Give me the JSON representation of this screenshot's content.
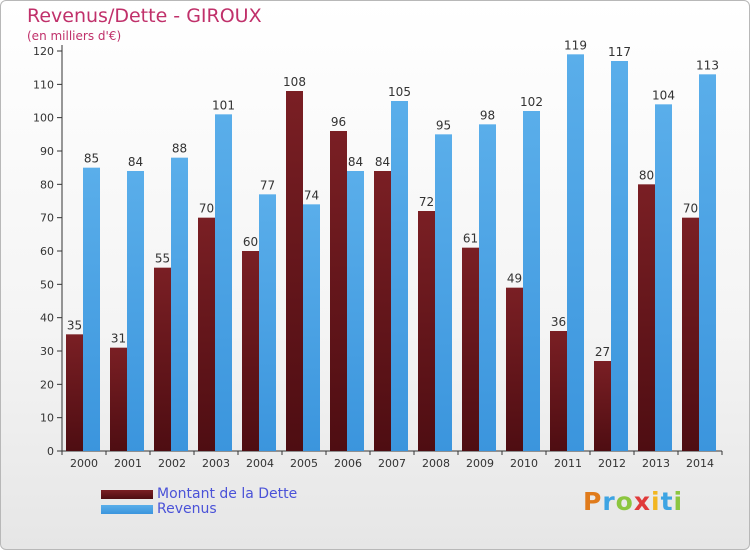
{
  "title": "Revenus/Dette - GIROUX",
  "subtitle": "(en milliers d'€)",
  "colors": {
    "dette": "#7a1f24",
    "dette_dark": "#4e0d12",
    "revenus": "#3b95dd",
    "revenus_light": "#5aaeea",
    "axis": "#333333",
    "grid": "#e0e0e0"
  },
  "legend": {
    "dette_label": "Montant de la Dette",
    "revenus_label": "Revenus"
  },
  "logo": {
    "letters": [
      "P",
      "r",
      "o",
      "x",
      "i",
      "t",
      "i"
    ],
    "colors": [
      "#e07b1b",
      "#3da4e3",
      "#8cc63f",
      "#e03a3a",
      "#f2b620",
      "#3da4e3",
      "#8cc63f"
    ]
  },
  "chart_data": {
    "type": "bar",
    "categories": [
      "2000",
      "2001",
      "2002",
      "2003",
      "2004",
      "2005",
      "2006",
      "2007",
      "2008",
      "2009",
      "2010",
      "2011",
      "2012",
      "2013",
      "2014"
    ],
    "series": [
      {
        "name": "Montant de la Dette",
        "values": [
          35,
          31,
          55,
          70,
          60,
          108,
          96,
          84,
          72,
          61,
          49,
          36,
          27,
          80,
          70
        ]
      },
      {
        "name": "Revenus",
        "values": [
          85,
          84,
          88,
          101,
          77,
          74,
          84,
          105,
          95,
          98,
          102,
          119,
          117,
          104,
          113
        ]
      }
    ],
    "ylim": [
      0,
      120
    ],
    "yticks": [
      0,
      10,
      20,
      30,
      40,
      50,
      60,
      70,
      80,
      90,
      100,
      110,
      120
    ],
    "grid": false,
    "legend_position": "bottom-left"
  }
}
